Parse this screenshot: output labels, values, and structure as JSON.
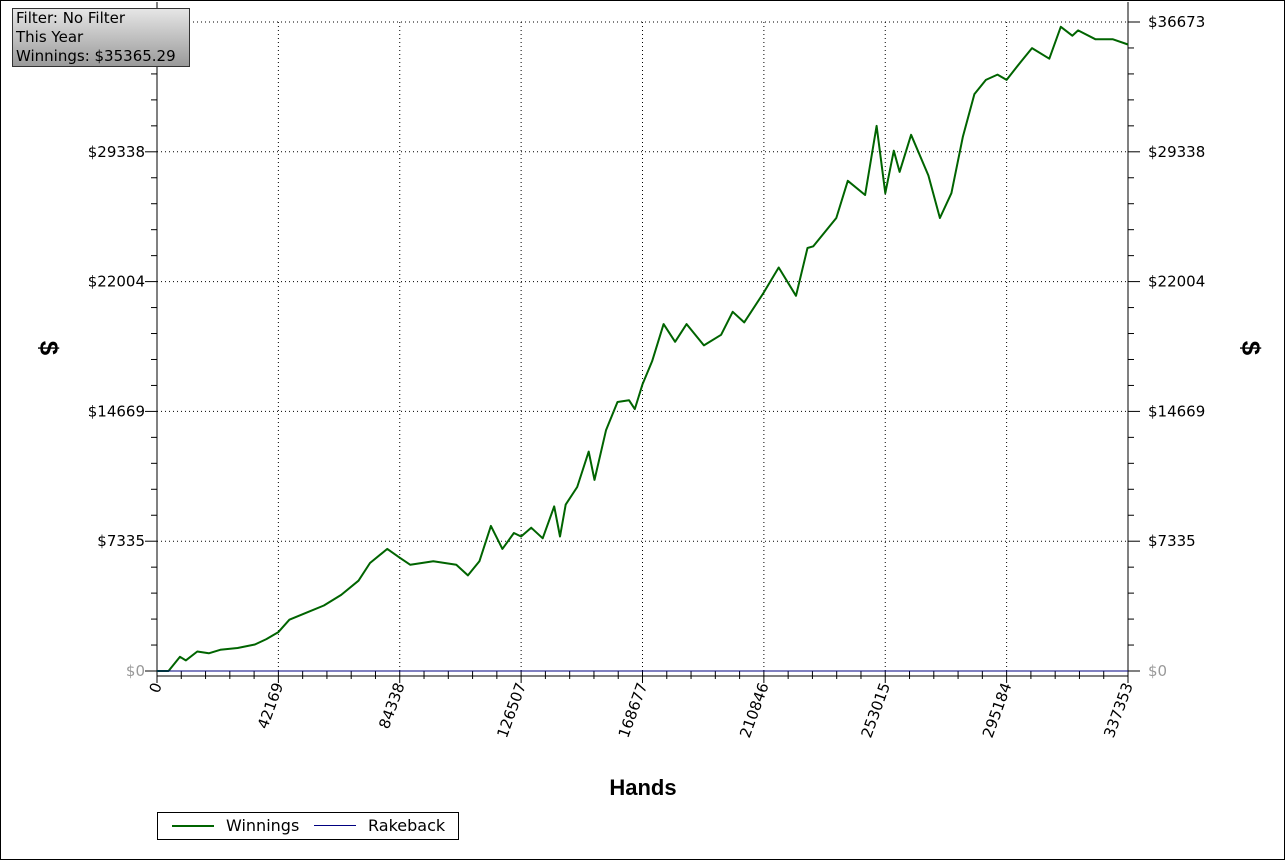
{
  "filter_box": {
    "filter": "Filter: No Filter",
    "period": "This Year",
    "winnings": "Winnings: $35365.29"
  },
  "legend": {
    "items": [
      {
        "label": "Winnings",
        "color": "#006400"
      },
      {
        "label": "Rakeback",
        "color": "#000080"
      }
    ]
  },
  "chart_data": {
    "type": "line",
    "xlabel": "Hands",
    "ylabel": "$",
    "xlim": [
      0,
      337353
    ],
    "ylim": [
      0,
      36673
    ],
    "x_ticks": [
      "0",
      "42169",
      "84338",
      "126507",
      "168677",
      "210846",
      "253015",
      "295184",
      "337353"
    ],
    "y_ticks": [
      "$0",
      "$7335",
      "$14669",
      "$22004",
      "$29338",
      "$36673"
    ],
    "grid": true,
    "legend_position": "bottom-left",
    "series": [
      {
        "name": "Winnings",
        "color": "#006400",
        "x": [
          0,
          4000,
          8000,
          10000,
          14000,
          18000,
          22000,
          28000,
          34000,
          38000,
          42169,
          46000,
          52000,
          58000,
          64000,
          70000,
          74000,
          80000,
          84338,
          88000,
          96000,
          104000,
          108000,
          112000,
          116000,
          120000,
          124000,
          126507,
          130000,
          134000,
          138000,
          140000,
          142000,
          146000,
          150000,
          152000,
          156000,
          160000,
          164000,
          166000,
          168677,
          172000,
          176000,
          180000,
          184000,
          190000,
          196000,
          200000,
          204000,
          210846,
          216000,
          222000,
          226000,
          228000,
          232000,
          236000,
          240000,
          246000,
          250000,
          253015,
          256000,
          258000,
          262000,
          268000,
          272000,
          276000,
          280000,
          284000,
          288000,
          292000,
          295184,
          300000,
          304000,
          310000,
          314000,
          318000,
          320000,
          326000,
          332000,
          337353
        ],
        "y": [
          0,
          0,
          800,
          600,
          1100,
          1000,
          1200,
          1300,
          1500,
          1800,
          2200,
          2900,
          3300,
          3700,
          4300,
          5100,
          6100,
          6900,
          6400,
          6000,
          6200,
          6000,
          5400,
          6200,
          8200,
          6900,
          7800,
          7600,
          8100,
          7500,
          9300,
          7600,
          9400,
          10400,
          12400,
          10800,
          13600,
          15200,
          15300,
          14800,
          16200,
          17500,
          19600,
          18600,
          19600,
          18400,
          19000,
          20300,
          19700,
          21400,
          22800,
          21200,
          23900,
          24000,
          24800,
          25600,
          27700,
          26900,
          30800,
          27000,
          29400,
          28200,
          30300,
          28000,
          25600,
          27000,
          30200,
          32600,
          33400,
          33700,
          33400,
          34400,
          35200,
          34600,
          36400,
          35900,
          36200,
          35700,
          35700,
          35400
        ]
      },
      {
        "name": "Rakeback",
        "color": "#000080",
        "x": [
          0,
          337353
        ],
        "y": [
          0,
          0
        ]
      }
    ]
  }
}
